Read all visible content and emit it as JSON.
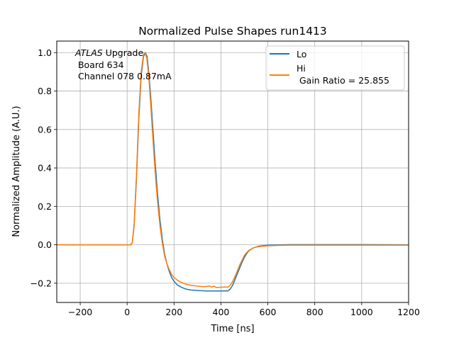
{
  "chart_data": {
    "type": "line",
    "title": "Normalized Pulse Shapes run1413",
    "xlabel": "Time [ns]",
    "ylabel": "Normalized Amplitude (A.U.)",
    "xlim": [
      -300,
      1200
    ],
    "ylim": [
      -0.3,
      1.06
    ],
    "xticks": [
      -200,
      0,
      200,
      400,
      600,
      800,
      1000,
      1200
    ],
    "xtick_labels": [
      "−200",
      "0",
      "200",
      "400",
      "600",
      "800",
      "1000",
      "1200"
    ],
    "yticks": [
      -0.2,
      0.0,
      0.2,
      0.4,
      0.6,
      0.8,
      1.0
    ],
    "ytick_labels": [
      "−0.2",
      "0.0",
      "0.2",
      "0.4",
      "0.6",
      "0.8",
      "1.0"
    ],
    "grid": true,
    "legend_position": "top-right",
    "annotation": {
      "line1_italic": "ATLAS",
      "line1_rest": " Upgrade",
      "line2": " Board 634",
      "line3": " Channel 078 0.87mA"
    },
    "series": [
      {
        "name": "Lo",
        "legend_lines": [
          "Lo"
        ],
        "color": "#1f77b4",
        "x": [
          -300,
          15,
          22,
          30,
          40,
          50,
          60,
          70,
          78,
          85,
          92,
          100,
          110,
          120,
          130,
          140,
          150,
          160,
          170,
          180,
          190,
          200,
          215,
          230,
          250,
          270,
          300,
          340,
          380,
          410,
          430,
          440,
          450,
          460,
          470,
          480,
          490,
          500,
          510,
          520,
          540,
          560,
          580,
          600,
          650,
          700,
          800,
          1000,
          1200
        ],
        "y": [
          0.0,
          0.0,
          0.01,
          0.1,
          0.35,
          0.66,
          0.88,
          0.98,
          1.0,
          0.98,
          0.9,
          0.78,
          0.6,
          0.42,
          0.26,
          0.13,
          0.03,
          -0.05,
          -0.1,
          -0.14,
          -0.17,
          -0.19,
          -0.21,
          -0.22,
          -0.23,
          -0.235,
          -0.238,
          -0.24,
          -0.24,
          -0.24,
          -0.24,
          -0.23,
          -0.21,
          -0.18,
          -0.15,
          -0.12,
          -0.09,
          -0.065,
          -0.045,
          -0.03,
          -0.015,
          -0.008,
          -0.004,
          -0.002,
          0.0,
          0.001,
          0.001,
          0.001,
          0.0
        ]
      },
      {
        "name": "Hi",
        "legend_lines": [
          "Hi",
          " Gain Ratio = 25.855"
        ],
        "color": "#ff7f0e",
        "x": [
          -300,
          15,
          22,
          30,
          40,
          50,
          60,
          70,
          77,
          84,
          92,
          100,
          110,
          120,
          130,
          140,
          150,
          160,
          170,
          180,
          190,
          200,
          215,
          230,
          250,
          270,
          300,
          330,
          350,
          360,
          370,
          380,
          410,
          430,
          440,
          450,
          460,
          470,
          480,
          490,
          500,
          510,
          520,
          540,
          560,
          580,
          600,
          650,
          700,
          800,
          1000,
          1200
        ],
        "y": [
          0.0,
          0.0,
          0.01,
          0.11,
          0.37,
          0.69,
          0.9,
          0.99,
          1.0,
          0.97,
          0.88,
          0.74,
          0.55,
          0.37,
          0.22,
          0.1,
          0.01,
          -0.06,
          -0.1,
          -0.13,
          -0.155,
          -0.17,
          -0.185,
          -0.195,
          -0.205,
          -0.21,
          -0.215,
          -0.218,
          -0.214,
          -0.22,
          -0.215,
          -0.222,
          -0.22,
          -0.22,
          -0.21,
          -0.19,
          -0.165,
          -0.135,
          -0.105,
          -0.08,
          -0.055,
          -0.04,
          -0.028,
          -0.015,
          -0.01,
          -0.007,
          -0.005,
          -0.003,
          -0.002,
          -0.002,
          -0.002,
          -0.002
        ]
      }
    ]
  }
}
